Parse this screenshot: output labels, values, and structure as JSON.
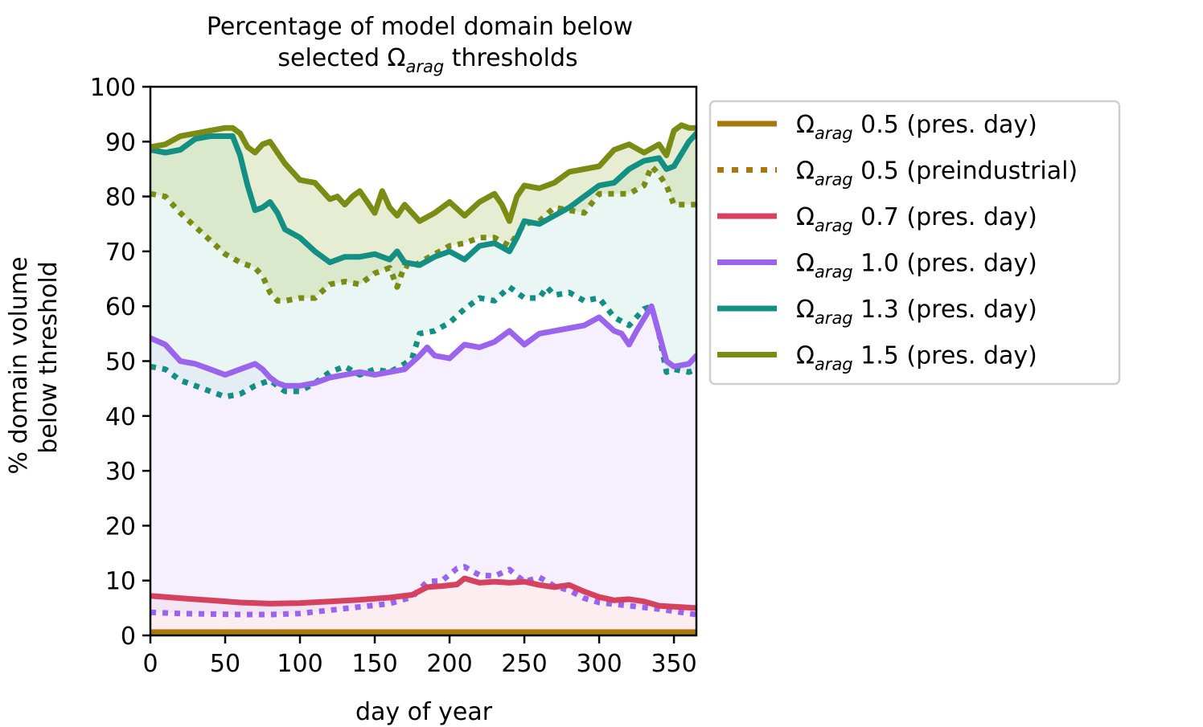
{
  "chart_data": {
    "type": "line",
    "title_line1": "Percentage of model domain below",
    "title_line2_prefix": "selected Ω",
    "title_line2_sub": "arag",
    "title_line2_suffix": " thresholds",
    "xlabel": "day of year",
    "ylabel_line1": "% domain volume",
    "ylabel_line2": "below threshold",
    "xlim": [
      0,
      365
    ],
    "ylim": [
      0,
      100
    ],
    "xticks": [
      0,
      50,
      100,
      150,
      200,
      250,
      300,
      350
    ],
    "yticks": [
      0,
      10,
      20,
      30,
      40,
      50,
      60,
      70,
      80,
      90,
      100
    ],
    "grid": false,
    "legend_position": "outside-right",
    "series": [
      {
        "name": "Ω arag 0.5 (pres. day)",
        "legend_prefix": "Ω",
        "legend_sub": "arag",
        "legend_suffix": " 0.5 (pres. day)",
        "color": "#a8780f",
        "style": "solid",
        "fill_pair": 1,
        "fill_color": "#c98f8f",
        "x": [
          0,
          50,
          100,
          150,
          200,
          250,
          300,
          365
        ],
        "y": [
          0.6,
          0.6,
          0.6,
          0.6,
          0.6,
          0.6,
          0.6,
          0.6
        ]
      },
      {
        "name": "Ω arag 0.5 (preindustrial)",
        "legend_prefix": "Ω",
        "legend_sub": "arag",
        "legend_suffix": " 0.5 (preindustrial)",
        "color": "#a8780f",
        "style": "dotted",
        "x": [
          0,
          50,
          100,
          150,
          200,
          250,
          300,
          365
        ],
        "y": [
          0.3,
          0.3,
          0.3,
          0.3,
          0.3,
          0.3,
          0.3,
          0.3
        ]
      },
      {
        "name": "Ω arag 0.7 (pres. day)",
        "legend_prefix": "Ω",
        "legend_sub": "arag",
        "legend_suffix": " 0.7 (pres. day)",
        "color": "#d6415e",
        "style": "solid",
        "fill_pair": 3,
        "fill_color": "#f8d7de",
        "x": [
          0,
          20,
          40,
          60,
          80,
          100,
          120,
          140,
          160,
          175,
          185,
          195,
          205,
          210,
          220,
          230,
          240,
          250,
          260,
          270,
          280,
          290,
          300,
          310,
          320,
          330,
          340,
          365
        ],
        "y": [
          7.2,
          6.8,
          6.4,
          6.0,
          5.8,
          5.9,
          6.2,
          6.5,
          6.9,
          7.4,
          8.8,
          9.0,
          9.3,
          10.4,
          9.6,
          9.8,
          9.6,
          9.8,
          9.2,
          8.8,
          9.2,
          8.0,
          7.0,
          6.4,
          6.6,
          6.2,
          5.4,
          5.0
        ]
      },
      {
        "name": "Ω arag 0.7 (preindustrial)",
        "color": "#d6415e",
        "style": "dotted",
        "legend": false,
        "x": [
          0,
          50,
          100,
          150,
          200,
          250,
          300,
          365
        ],
        "y": [
          0.4,
          0.4,
          0.4,
          0.4,
          0.4,
          0.4,
          0.4,
          0.4
        ]
      },
      {
        "name": "Ω arag 1.0 (pres. day)",
        "legend_prefix": "Ω",
        "legend_sub": "arag",
        "legend_suffix": " 1.0 (pres. day)",
        "color": "#9a64ef",
        "style": "solid",
        "fill_pair": 5,
        "fill_color": "#e8dcfd",
        "x": [
          0,
          10,
          20,
          30,
          40,
          50,
          60,
          70,
          75,
          80,
          85,
          90,
          100,
          110,
          120,
          130,
          140,
          150,
          160,
          170,
          180,
          185,
          190,
          200,
          210,
          220,
          230,
          240,
          250,
          260,
          270,
          280,
          290,
          300,
          310,
          315,
          320,
          325,
          335,
          340,
          345,
          350,
          360,
          365
        ],
        "y": [
          54.2,
          53.0,
          50.0,
          49.5,
          48.5,
          47.5,
          48.5,
          49.5,
          48.5,
          47.0,
          46.0,
          45.5,
          45.5,
          46.0,
          47.0,
          47.5,
          48.0,
          47.5,
          48.0,
          48.5,
          51.0,
          52.5,
          51.0,
          50.5,
          53.0,
          52.5,
          53.5,
          55.5,
          53.0,
          55.0,
          55.5,
          56.0,
          56.5,
          58.0,
          55.5,
          55.0,
          53.0,
          55.5,
          60.0,
          55.0,
          50.0,
          49.0,
          49.5,
          51.0
        ]
      },
      {
        "name": "Ω arag 1.0 (preindustrial)",
        "color": "#9a64ef",
        "style": "dotted",
        "legend": false,
        "x": [
          0,
          20,
          40,
          60,
          80,
          100,
          120,
          140,
          160,
          175,
          185,
          195,
          205,
          210,
          220,
          230,
          240,
          250,
          260,
          270,
          280,
          290,
          300,
          320,
          340,
          365
        ],
        "y": [
          4.2,
          4.0,
          3.9,
          3.8,
          3.8,
          4.0,
          4.6,
          5.2,
          5.8,
          7.0,
          9.8,
          10.0,
          12.2,
          12.5,
          11.0,
          10.8,
          12.0,
          9.8,
          10.6,
          9.0,
          8.2,
          6.8,
          6.0,
          5.4,
          4.8,
          3.8
        ]
      },
      {
        "name": "Ω arag 1.3 (pres. day)",
        "legend_prefix": "Ω",
        "legend_sub": "arag",
        "legend_suffix": " 1.3 (pres. day)",
        "color": "#138f84",
        "style": "solid",
        "fill_pair": 7,
        "fill_color": "#d0ebe7",
        "x": [
          0,
          10,
          20,
          30,
          40,
          50,
          55,
          60,
          65,
          70,
          75,
          80,
          85,
          90,
          100,
          110,
          120,
          130,
          140,
          150,
          160,
          165,
          170,
          180,
          190,
          200,
          210,
          220,
          230,
          240,
          245,
          250,
          260,
          270,
          280,
          290,
          300,
          310,
          320,
          330,
          340,
          345,
          350,
          360,
          365
        ],
        "y": [
          88.5,
          88.0,
          88.5,
          90.5,
          91.0,
          91.0,
          91.0,
          87.5,
          82.0,
          77.5,
          78.0,
          79.0,
          77.0,
          74.0,
          72.5,
          70.0,
          68.0,
          69.0,
          69.0,
          69.5,
          68.5,
          70.0,
          68.0,
          67.5,
          69.0,
          70.0,
          68.5,
          71.0,
          71.5,
          70.0,
          72.5,
          75.5,
          75.0,
          76.5,
          78.0,
          80.0,
          82.0,
          82.5,
          85.0,
          86.5,
          87.0,
          85.0,
          85.5,
          90.0,
          91.5
        ]
      },
      {
        "name": "Ω arag 1.3 (preindustrial)",
        "color": "#138f84",
        "style": "dotted",
        "legend": false,
        "x": [
          0,
          10,
          20,
          30,
          40,
          50,
          60,
          70,
          80,
          90,
          100,
          110,
          120,
          130,
          140,
          150,
          160,
          170,
          175,
          180,
          190,
          200,
          210,
          220,
          230,
          240,
          250,
          260,
          265,
          270,
          280,
          290,
          300,
          310,
          320,
          330,
          335,
          340,
          345,
          350,
          360,
          365
        ],
        "y": [
          49.0,
          48.5,
          46.5,
          45.5,
          44.5,
          43.5,
          44.0,
          45.5,
          46.5,
          44.5,
          44.5,
          46.0,
          48.0,
          49.0,
          47.5,
          48.5,
          48.0,
          49.5,
          50.5,
          55.0,
          55.5,
          57.0,
          59.5,
          61.5,
          61.0,
          63.5,
          61.5,
          61.5,
          63.5,
          62.0,
          62.5,
          61.0,
          61.5,
          58.0,
          56.5,
          59.5,
          60.0,
          55.0,
          48.0,
          48.5,
          48.0,
          48.5
        ]
      },
      {
        "name": "Ω arag 1.5 (pres. day)",
        "legend_prefix": "Ω",
        "legend_sub": "arag",
        "legend_suffix": " 1.5 (pres. day)",
        "color": "#7b8c14",
        "style": "solid",
        "fill_pair": 9,
        "fill_color": "#c8d69b",
        "x": [
          0,
          10,
          20,
          30,
          40,
          50,
          55,
          60,
          65,
          70,
          75,
          80,
          85,
          90,
          100,
          110,
          120,
          125,
          130,
          135,
          140,
          145,
          150,
          155,
          160,
          165,
          170,
          175,
          180,
          190,
          200,
          210,
          220,
          230,
          235,
          240,
          245,
          250,
          260,
          270,
          280,
          290,
          300,
          310,
          320,
          330,
          340,
          345,
          350,
          355,
          360,
          365
        ],
        "y": [
          89.0,
          89.5,
          91.0,
          91.5,
          92.0,
          92.5,
          92.5,
          91.5,
          89.0,
          88.0,
          89.5,
          90.0,
          88.0,
          86.0,
          83.0,
          82.5,
          79.5,
          80.0,
          78.5,
          80.0,
          81.0,
          79.0,
          77.0,
          81.0,
          78.0,
          76.5,
          78.5,
          77.0,
          75.5,
          77.0,
          79.0,
          76.5,
          79.0,
          80.5,
          78.5,
          75.5,
          80.0,
          82.0,
          81.5,
          82.5,
          84.5,
          85.0,
          85.5,
          88.5,
          89.5,
          88.0,
          89.5,
          87.5,
          92.0,
          93.0,
          92.5,
          92.5
        ]
      },
      {
        "name": "Ω arag 1.5 (preindustrial)",
        "color": "#7b8c14",
        "style": "dotted",
        "legend": false,
        "x": [
          0,
          10,
          20,
          30,
          40,
          50,
          60,
          70,
          75,
          80,
          85,
          90,
          100,
          110,
          120,
          130,
          140,
          150,
          160,
          165,
          170,
          175,
          180,
          190,
          200,
          210,
          220,
          230,
          240,
          250,
          260,
          270,
          280,
          290,
          300,
          310,
          320,
          330,
          335,
          340,
          345,
          350,
          360,
          365
        ],
        "y": [
          80.5,
          80.0,
          77.0,
          74.5,
          72.0,
          69.5,
          68.0,
          67.0,
          65.5,
          62.5,
          61.0,
          61.0,
          61.5,
          61.5,
          64.0,
          64.5,
          64.0,
          66.0,
          67.0,
          63.5,
          67.5,
          67.0,
          68.0,
          69.5,
          71.0,
          71.5,
          72.5,
          72.5,
          71.0,
          75.0,
          75.5,
          78.0,
          77.5,
          77.0,
          80.5,
          80.5,
          80.5,
          82.0,
          85.5,
          84.0,
          82.0,
          78.5,
          78.5,
          78.5
        ]
      }
    ]
  }
}
